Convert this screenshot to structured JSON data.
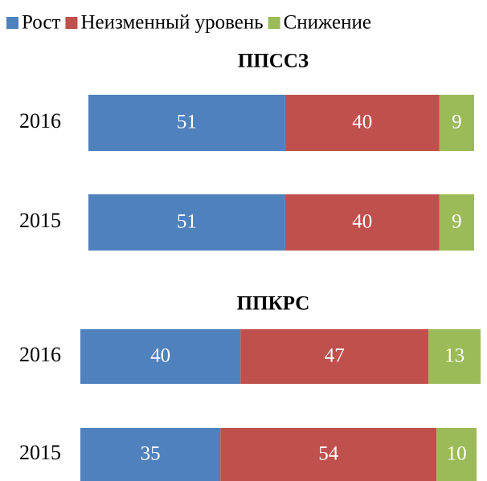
{
  "legend": [
    {
      "name": "Рост",
      "color": "#4f81bd"
    },
    {
      "name": "Неизменный уровень",
      "color": "#c0504d"
    },
    {
      "name": "Снижение",
      "color": "#9bbb59"
    }
  ],
  "chart_data": [
    {
      "type": "stacked-bar-horizontal",
      "title": "ППССЗ",
      "categories": [
        "2016",
        "2015"
      ],
      "xlim": [
        0,
        100
      ],
      "series": [
        {
          "color": "#4f81bd",
          "values": [
            51,
            51
          ]
        },
        {
          "color": "#c0504d",
          "values": [
            40,
            40
          ]
        },
        {
          "color": "#9bbb59",
          "values": [
            9,
            9
          ]
        }
      ]
    },
    {
      "type": "stacked-bar-horizontal",
      "title": "ППКРС",
      "categories": [
        "2016",
        "2015"
      ],
      "xlim": [
        0,
        100
      ],
      "series": [
        {
          "color": "#4f81bd",
          "values": [
            40,
            35
          ]
        },
        {
          "color": "#c0504d",
          "values": [
            47,
            54
          ]
        },
        {
          "color": "#9bbb59",
          "values": [
            13,
            10
          ]
        }
      ]
    }
  ]
}
